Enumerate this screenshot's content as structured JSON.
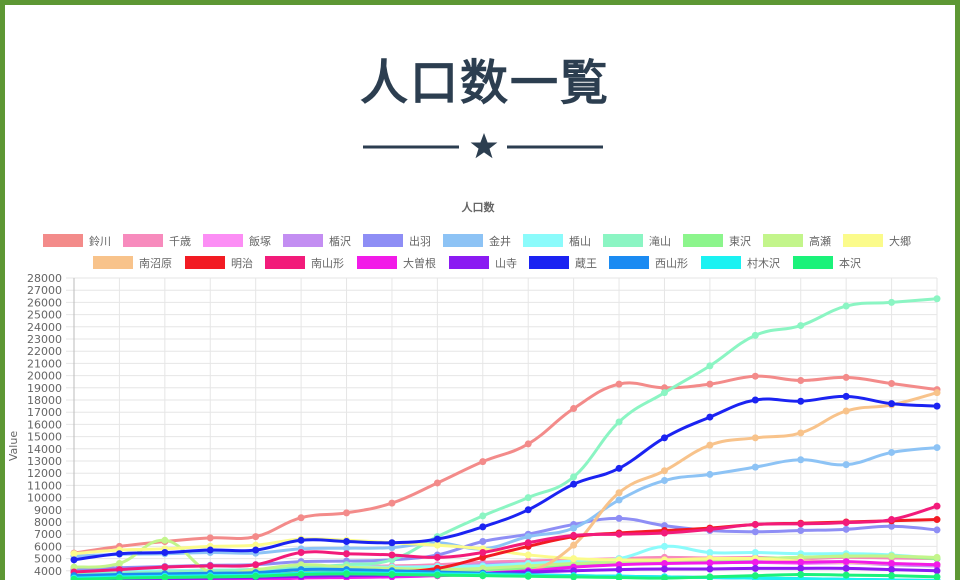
{
  "page": {
    "title": "人口数一覧"
  },
  "chart_data": {
    "type": "line",
    "title": "人口数",
    "ylabel": "Value",
    "xlabel": "",
    "ylim": [
      4000,
      28000
    ],
    "ytick_step": 1000,
    "grid": true,
    "legend_position": "top",
    "series": [
      {
        "name": "鈴川",
        "color": "#f38b8a",
        "values": [
          5450,
          6000,
          6400,
          6700,
          6800,
          8350,
          8750,
          9550,
          11200,
          12950,
          14400,
          17300,
          19300,
          19000,
          19300,
          19950,
          19600,
          19850,
          19350,
          18850
        ]
      },
      {
        "name": "千歳",
        "color": "#f78bbd",
        "values": [
          3800,
          3900,
          4000,
          4050,
          4100,
          4300,
          4350,
          4400,
          4500,
          4700,
          4800,
          4900,
          5000,
          5100,
          5050,
          5100,
          5000,
          5100,
          5050,
          5000
        ]
      },
      {
        "name": "飯塚",
        "color": "#fc8ef5",
        "values": [
          3300,
          3400,
          3450,
          3500,
          3550,
          3700,
          3750,
          3800,
          3900,
          4100,
          4200,
          4400,
          4600,
          4700,
          4650,
          4700,
          4600,
          4650,
          4500,
          4400
        ]
      },
      {
        "name": "楯沢",
        "color": "#c38ef2",
        "values": [
          3600,
          3700,
          3750,
          3850,
          3900,
          4100,
          4150,
          4200,
          4300,
          4500,
          4600,
          4700,
          4800,
          4850,
          4800,
          4850,
          4700,
          4700,
          4500,
          4400
        ]
      },
      {
        "name": "出羽",
        "color": "#8e8ef5",
        "values": [
          4100,
          4250,
          4350,
          4450,
          4500,
          4750,
          4800,
          4900,
          5300,
          6400,
          7000,
          7800,
          8300,
          7700,
          7300,
          7200,
          7300,
          7400,
          7650,
          7350
        ]
      },
      {
        "name": "金井",
        "color": "#8dc3f5",
        "values": [
          5200,
          5350,
          5400,
          5500,
          5450,
          5800,
          5850,
          5900,
          6300,
          5800,
          6800,
          7500,
          9800,
          11400,
          11900,
          12500,
          13100,
          12700,
          13700,
          14100
        ]
      },
      {
        "name": "楯山",
        "color": "#8bfbfb",
        "values": [
          3900,
          3950,
          4000,
          4050,
          4100,
          4300,
          4350,
          4300,
          4350,
          4400,
          4600,
          4800,
          5000,
          6000,
          5500,
          5500,
          5400,
          5400,
          5300,
          5000
        ]
      },
      {
        "name": "滝山",
        "color": "#8bf5c3",
        "values": [
          3700,
          3800,
          3900,
          4000,
          4100,
          4300,
          4500,
          4900,
          6800,
          8500,
          10000,
          11700,
          16200,
          18600,
          20800,
          23300,
          24100,
          25700,
          26000,
          26300
        ]
      },
      {
        "name": "東沢",
        "color": "#8cf58c",
        "values": [
          3500,
          3550,
          3600,
          3700,
          3750,
          3900,
          3950,
          4000,
          4000,
          4100,
          4200,
          4400,
          4700,
          4800,
          4850,
          5000,
          5100,
          5200,
          5200,
          5000
        ]
      },
      {
        "name": "高瀬",
        "color": "#c3f58b",
        "values": [
          4300,
          4600,
          6500,
          3900,
          4100,
          4500,
          4300,
          4200,
          4100,
          4200,
          4400,
          4600,
          4700,
          4800,
          4900,
          5000,
          5100,
          5200,
          5200,
          5100
        ]
      },
      {
        "name": "大郷",
        "color": "#fbfb8b",
        "values": [
          5400,
          5700,
          5800,
          6000,
          6100,
          6600,
          6500,
          6300,
          6100,
          5800,
          5300,
          5000,
          4900,
          4900,
          5000,
          5000,
          4800,
          4700,
          4600,
          4500
        ]
      },
      {
        "name": "南沼原",
        "color": "#f8c38b",
        "values": [
          3100,
          3200,
          3250,
          3300,
          3350,
          3450,
          3500,
          3550,
          3600,
          3700,
          3900,
          6100,
          10400,
          12200,
          14300,
          14900,
          15300,
          17100,
          17600,
          18600
        ]
      },
      {
        "name": "明治",
        "color": "#f21b23",
        "values": [
          3400,
          3500,
          3550,
          3600,
          3650,
          3800,
          3850,
          3900,
          4200,
          5100,
          6000,
          6800,
          7100,
          7300,
          7500,
          7800,
          7900,
          8000,
          8100,
          8200
        ]
      },
      {
        "name": "南山形",
        "color": "#f21b7a",
        "values": [
          3900,
          4100,
          4300,
          4400,
          4500,
          5500,
          5400,
          5300,
          5100,
          5500,
          6300,
          6900,
          7000,
          7100,
          7400,
          7800,
          7850,
          7950,
          8200,
          9300
        ]
      },
      {
        "name": "大曽根",
        "color": "#f21be8",
        "values": [
          3000,
          3100,
          3150,
          3200,
          3250,
          3400,
          3450,
          3500,
          3600,
          3800,
          4000,
          4300,
          4500,
          4600,
          4650,
          4700,
          4700,
          4750,
          4600,
          4500
        ]
      },
      {
        "name": "山寺",
        "color": "#8b1bf2",
        "values": [
          3200,
          3300,
          3350,
          3400,
          3450,
          3550,
          3600,
          3650,
          3700,
          3800,
          3900,
          4000,
          4100,
          4150,
          4150,
          4200,
          4200,
          4200,
          4100,
          4000
        ]
      },
      {
        "name": "蔵王",
        "color": "#1b23f2",
        "values": [
          4900,
          5400,
          5500,
          5700,
          5700,
          6500,
          6400,
          6300,
          6600,
          7600,
          9000,
          11100,
          12400,
          14900,
          16600,
          18000,
          17900,
          18300,
          17700,
          17500
        ]
      },
      {
        "name": "西山形",
        "color": "#1b8bf2",
        "values": [
          3600,
          3700,
          3750,
          3800,
          3850,
          4100,
          4100,
          4000,
          3900,
          3800,
          3700,
          3600,
          3550,
          3500,
          3450,
          3400,
          3350,
          3300,
          3250,
          3200
        ]
      },
      {
        "name": "村木沢",
        "color": "#1bf2f2",
        "values": [
          3400,
          3500,
          3550,
          3600,
          3650,
          3800,
          3850,
          3800,
          3750,
          3700,
          3650,
          3600,
          3550,
          3500,
          3450,
          3400,
          3350,
          3300,
          3250,
          3200
        ]
      },
      {
        "name": "本沢",
        "color": "#1bf27a",
        "values": [
          3300,
          3400,
          3450,
          3500,
          3550,
          3700,
          3750,
          3700,
          3650,
          3600,
          3550,
          3500,
          3450,
          3400,
          3500,
          3600,
          3700,
          3650,
          3600,
          3500
        ]
      }
    ]
  }
}
